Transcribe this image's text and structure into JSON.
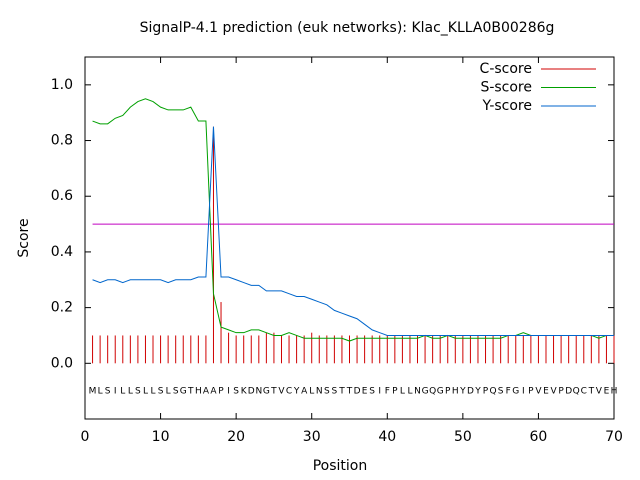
{
  "chart_data": {
    "type": "signalp",
    "title": "SignalP-4.1 prediction (euk networks): Klac_KLLA0B00286g",
    "x_label": "Position",
    "y_label": "Score",
    "xlim": [
      0,
      70
    ],
    "ylim": [
      -0.2,
      1.1
    ],
    "xticks": [
      0,
      10,
      20,
      30,
      40,
      50,
      60,
      70
    ],
    "yticks": [
      {
        "value": 0,
        "label": "0.0"
      },
      0.2,
      0.4,
      0.6,
      0.8,
      {
        "value": 1,
        "label": "1.0"
      }
    ],
    "residue_y": -0.1,
    "x": [
      1,
      2,
      3,
      4,
      5,
      6,
      7,
      8,
      9,
      10,
      11,
      12,
      13,
      14,
      15,
      16,
      17,
      18,
      19,
      20,
      21,
      22,
      23,
      24,
      25,
      26,
      27,
      28,
      29,
      30,
      31,
      32,
      33,
      34,
      35,
      36,
      37,
      38,
      39,
      40,
      41,
      42,
      43,
      44,
      45,
      46,
      47,
      48,
      49,
      50,
      51,
      52,
      53,
      54,
      55,
      56,
      57,
      58,
      59,
      60,
      61,
      62,
      63,
      64,
      65,
      66,
      67,
      68,
      69,
      70
    ],
    "residues": [
      "M",
      "L",
      "S",
      "I",
      "L",
      "L",
      "S",
      "L",
      "L",
      "S",
      "L",
      "S",
      "G",
      "T",
      "H",
      "A",
      "A",
      "P",
      "I",
      "S",
      "K",
      "D",
      "N",
      "G",
      "T",
      "V",
      "C",
      "Y",
      "A",
      "L",
      "N",
      "S",
      "S",
      "T",
      "T",
      "D",
      "E",
      "S",
      "I",
      "F",
      "P",
      "L",
      "L",
      "N",
      "G",
      "Q",
      "G",
      "P",
      "H",
      "Y",
      "D",
      "Y",
      "P",
      "Q",
      "S",
      "F",
      "G",
      "I",
      "P",
      "V",
      "E",
      "V",
      "P",
      "D",
      "Q",
      "C",
      "T",
      "V",
      "E",
      "H"
    ],
    "threshold": {
      "value": 0.5,
      "color": "#c000c0"
    },
    "legend": "upper right",
    "series": [
      {
        "name": "C-score",
        "color": "#d00000",
        "style": "impulses",
        "values": [
          0.1,
          0.1,
          0.1,
          0.1,
          0.1,
          0.1,
          0.1,
          0.1,
          0.1,
          0.1,
          0.1,
          0.1,
          0.1,
          0.1,
          0.1,
          0.1,
          0.85,
          0.22,
          0.11,
          0.1,
          0.1,
          0.1,
          0.1,
          0.11,
          0.11,
          0.1,
          0.1,
          0.1,
          0.1,
          0.11,
          0.1,
          0.1,
          0.1,
          0.1,
          0.1,
          0.1,
          0.1,
          0.1,
          0.1,
          0.1,
          0.1,
          0.1,
          0.1,
          0.1,
          0.1,
          0.1,
          0.1,
          0.1,
          0.1,
          0.1,
          0.1,
          0.1,
          0.1,
          0.1,
          0.1,
          0.1,
          0.1,
          0.1,
          0.1,
          0.1,
          0.1,
          0.1,
          0.1,
          0.1,
          0.1,
          0.1,
          0.1,
          0.1,
          0.1,
          0.1
        ]
      },
      {
        "name": "S-score",
        "color": "#00a000",
        "style": "line",
        "values": [
          0.87,
          0.86,
          0.86,
          0.88,
          0.89,
          0.92,
          0.94,
          0.95,
          0.94,
          0.92,
          0.91,
          0.91,
          0.91,
          0.92,
          0.87,
          0.87,
          0.25,
          0.13,
          0.12,
          0.11,
          0.11,
          0.12,
          0.12,
          0.11,
          0.1,
          0.1,
          0.11,
          0.1,
          0.09,
          0.09,
          0.09,
          0.09,
          0.09,
          0.09,
          0.08,
          0.09,
          0.09,
          0.09,
          0.09,
          0.09,
          0.09,
          0.09,
          0.09,
          0.09,
          0.1,
          0.09,
          0.09,
          0.1,
          0.09,
          0.09,
          0.09,
          0.09,
          0.09,
          0.09,
          0.09,
          0.1,
          0.1,
          0.11,
          0.1,
          0.1,
          0.1,
          0.1,
          0.1,
          0.1,
          0.1,
          0.1,
          0.1,
          0.09,
          0.1,
          0.1
        ]
      },
      {
        "name": "Y-score",
        "color": "#0066cc",
        "style": "line",
        "values": [
          0.3,
          0.29,
          0.3,
          0.3,
          0.29,
          0.3,
          0.3,
          0.3,
          0.3,
          0.3,
          0.29,
          0.3,
          0.3,
          0.3,
          0.31,
          0.31,
          0.85,
          0.31,
          0.31,
          0.3,
          0.29,
          0.28,
          0.28,
          0.26,
          0.26,
          0.26,
          0.25,
          0.24,
          0.24,
          0.23,
          0.22,
          0.21,
          0.19,
          0.18,
          0.17,
          0.16,
          0.14,
          0.12,
          0.11,
          0.1,
          0.1,
          0.1,
          0.1,
          0.1,
          0.1,
          0.1,
          0.1,
          0.1,
          0.1,
          0.1,
          0.1,
          0.1,
          0.1,
          0.1,
          0.1,
          0.1,
          0.1,
          0.1,
          0.1,
          0.1,
          0.1,
          0.1,
          0.1,
          0.1,
          0.1,
          0.1,
          0.1,
          0.1,
          0.1,
          0.1
        ]
      }
    ]
  }
}
